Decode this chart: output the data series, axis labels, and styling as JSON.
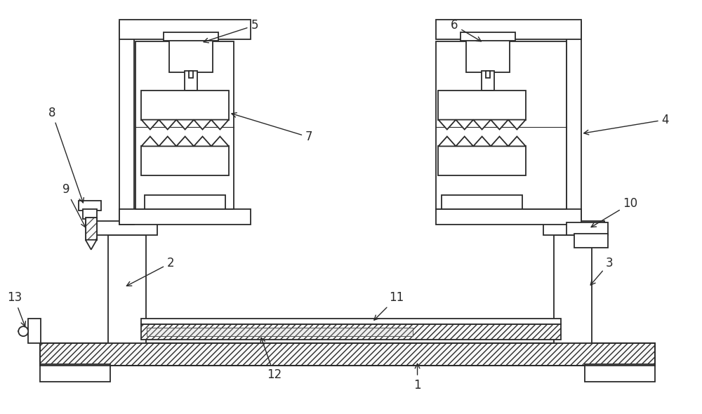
{
  "bg_color": "#ffffff",
  "line_color": "#2a2a2a",
  "figsize": [
    10.0,
    5.9
  ],
  "dpi": 100
}
